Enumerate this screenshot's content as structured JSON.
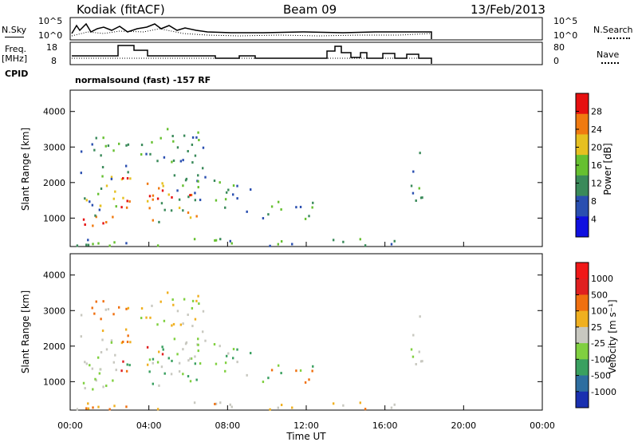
{
  "header": {
    "station": "Kodiak (fitACF)",
    "beam": "Beam 09",
    "date": "13/Feb/2013"
  },
  "left_labels": {
    "nsky": "N.Sky",
    "nsky_top": "10^5",
    "nsky_bot": "10^0",
    "freq": "Freq.",
    "freq_unit": "[MHz]",
    "freq_top": "18",
    "freq_bot": "8",
    "cpid": "CPID"
  },
  "right_labels": {
    "nsearch": "N.Search",
    "nsearch_top": "10^5",
    "nsearch_bot": "10^0",
    "nave": "Nave",
    "nave_top": "80",
    "nave_bot": "0"
  },
  "cpid_text": "normalsound (fast) -157 RF",
  "chart_data": [
    {
      "type": "heatmap",
      "panel": "power",
      "ylabel": "Slant Range [km]",
      "xlabel": "Time UT",
      "x_ticks": [
        "00:00",
        "04:00",
        "08:00",
        "12:00",
        "16:00",
        "20:00",
        "00:00"
      ],
      "y_ticks": [
        1000,
        2000,
        3000,
        4000
      ],
      "ylim": [
        200,
        4600
      ],
      "colorbar_label": "Power [dB]",
      "colorbar_ticks": [
        "28",
        "24",
        "20",
        "16",
        "12",
        "8",
        "4"
      ],
      "colors": [
        "#1010e0",
        "#2a4fb0",
        "#3a8a5a",
        "#66c030",
        "#e6c020",
        "#f07a10",
        "#e61010"
      ]
    },
    {
      "type": "heatmap",
      "panel": "velocity",
      "ylabel": "Slant Range [km]",
      "xlabel": "Time UT",
      "x_ticks": [
        "00:00",
        "04:00",
        "08:00",
        "12:00",
        "16:00",
        "20:00",
        "00:00"
      ],
      "y_ticks": [
        1000,
        2000,
        3000,
        4000
      ],
      "ylim": [
        200,
        4600
      ],
      "colorbar_label": "Velocity [m s⁻¹]",
      "colorbar_ticks": [
        "1000",
        "500",
        "100",
        "25",
        "-25",
        "-100",
        "-500",
        "-1000"
      ],
      "colors": [
        "#1a30b0",
        "#2e6ea0",
        "#3aa060",
        "#80d040",
        "#c8c8c0",
        "#f0b020",
        "#f07010",
        "#e02020",
        "#f01818"
      ]
    }
  ]
}
